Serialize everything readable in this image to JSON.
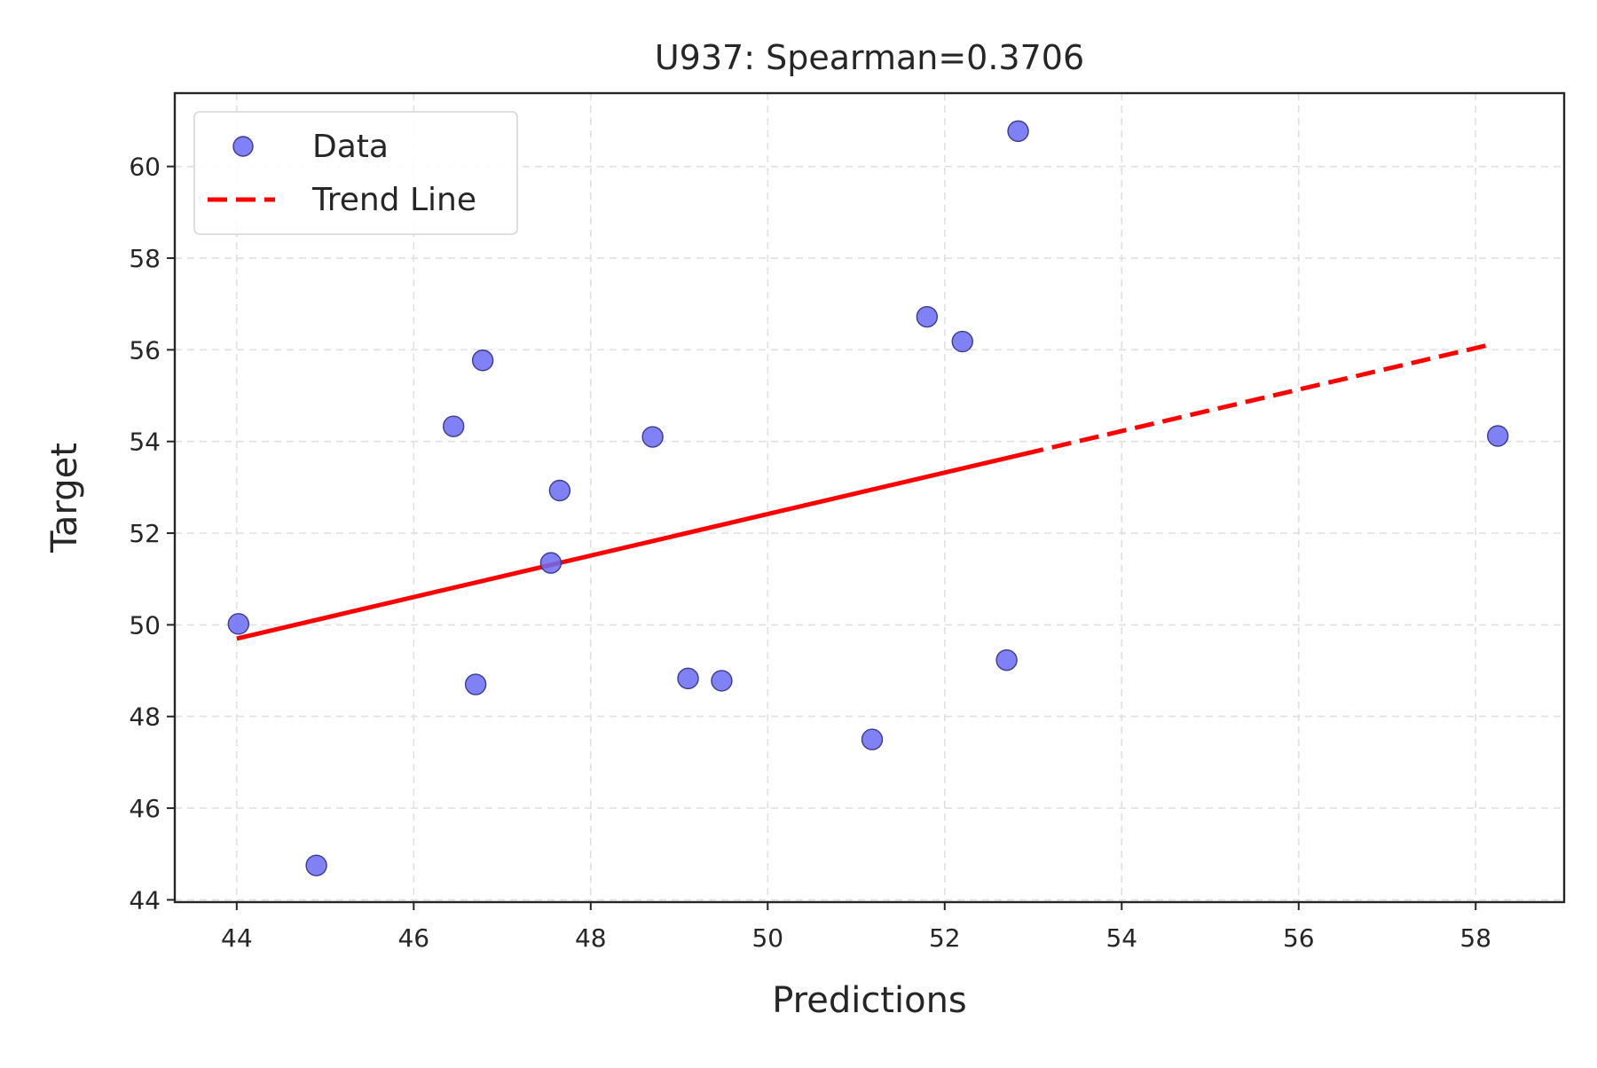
{
  "chart_data": {
    "type": "scatter",
    "title": "U937: Spearman=0.3706",
    "xlabel": "Predictions",
    "ylabel": "Target",
    "xlim": [
      43.3,
      59.0
    ],
    "ylim": [
      43.95,
      61.6
    ],
    "xticks": [
      44,
      46,
      48,
      50,
      52,
      54,
      56,
      58
    ],
    "yticks": [
      44,
      46,
      48,
      50,
      52,
      54,
      56,
      58,
      60
    ],
    "grid": true,
    "legend_position": "top-left",
    "series": [
      {
        "name": "Data",
        "kind": "scatter",
        "color": "#6b6bf5",
        "edge_color": "#3b3b8f",
        "points": [
          {
            "x": 44.02,
            "y": 50.02
          },
          {
            "x": 44.9,
            "y": 44.75
          },
          {
            "x": 46.45,
            "y": 54.33
          },
          {
            "x": 46.7,
            "y": 48.7
          },
          {
            "x": 46.78,
            "y": 55.77
          },
          {
            "x": 47.55,
            "y": 51.35
          },
          {
            "x": 47.65,
            "y": 52.93
          },
          {
            "x": 48.7,
            "y": 54.1
          },
          {
            "x": 49.1,
            "y": 48.83
          },
          {
            "x": 49.48,
            "y": 48.78
          },
          {
            "x": 51.18,
            "y": 47.5
          },
          {
            "x": 51.8,
            "y": 56.72
          },
          {
            "x": 52.2,
            "y": 56.18
          },
          {
            "x": 52.7,
            "y": 49.23
          },
          {
            "x": 52.83,
            "y": 60.77
          },
          {
            "x": 58.25,
            "y": 54.12
          }
        ]
      },
      {
        "name": "Trend Line",
        "kind": "line",
        "color": "#ff0000",
        "dashed": true,
        "points": [
          {
            "x": 44.0,
            "y": 49.7
          },
          {
            "x": 58.18,
            "y": 56.12
          }
        ]
      }
    ]
  }
}
